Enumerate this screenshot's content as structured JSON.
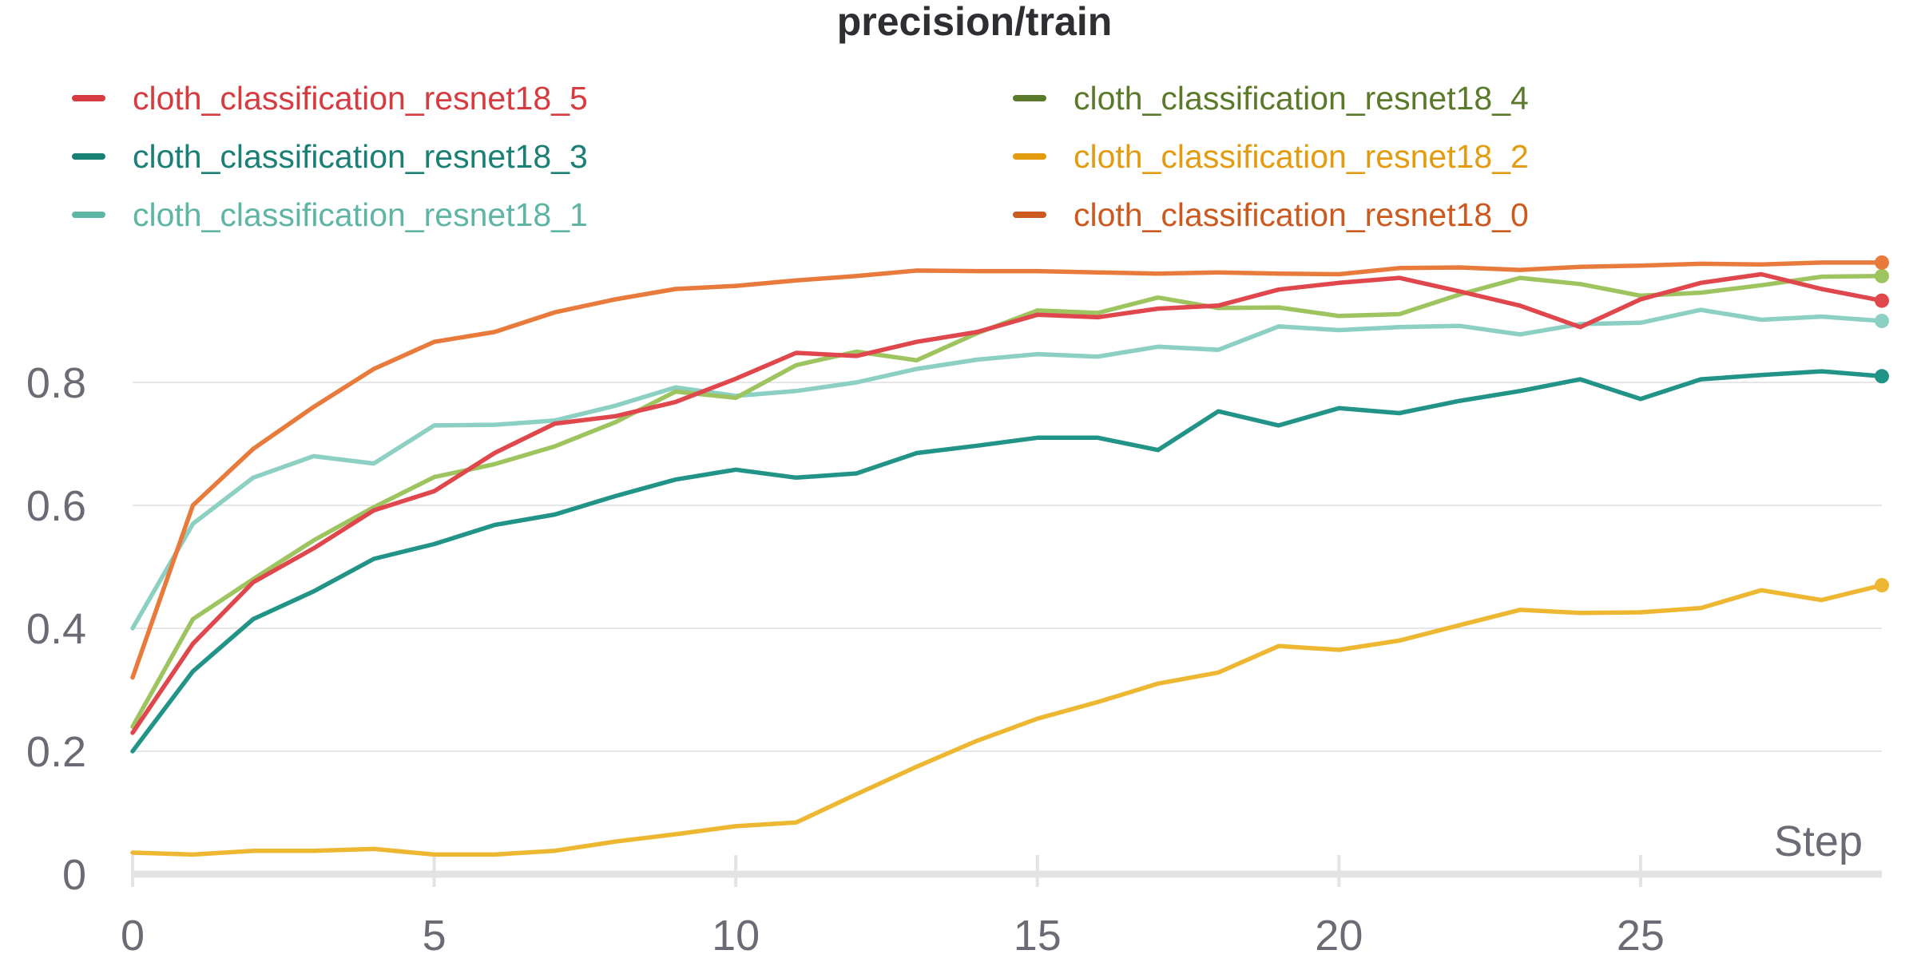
{
  "chart_data": {
    "type": "line",
    "title": "precision/train",
    "xlabel": "Step",
    "ylabel": "",
    "xlim": [
      0,
      29
    ],
    "ylim": [
      0,
      1
    ],
    "x_ticks": [
      "0",
      "5",
      "10",
      "15",
      "20",
      "25"
    ],
    "y_ticks": [
      "0",
      "0.2",
      "0.4",
      "0.6",
      "0.8"
    ],
    "grid": true,
    "legend_position": "top",
    "x": [
      0,
      1,
      2,
      3,
      4,
      5,
      6,
      7,
      8,
      9,
      10,
      11,
      12,
      13,
      14,
      15,
      16,
      17,
      18,
      19,
      20,
      21,
      22,
      23,
      24,
      25,
      26,
      27,
      28,
      29
    ],
    "series": [
      {
        "name": "cloth_classification_resnet18_5",
        "legend_color": "#d63b40",
        "line_color": "#e0474c",
        "values": [
          0.23,
          0.375,
          0.475,
          0.53,
          0.592,
          0.623,
          0.685,
          0.733,
          0.745,
          0.768,
          0.806,
          0.848,
          0.843,
          0.866,
          0.882,
          0.91,
          0.906,
          0.92,
          0.925,
          0.951,
          0.962,
          0.97,
          0.948,
          0.925,
          0.89,
          0.935,
          0.962,
          0.976,
          0.952,
          0.933
        ]
      },
      {
        "name": "cloth_classification_resnet18_4",
        "legend_color": "#5a7a2a",
        "line_color": "#9dc45f",
        "values": [
          0.24,
          0.415,
          0.48,
          0.543,
          0.597,
          0.646,
          0.667,
          0.696,
          0.735,
          0.785,
          0.775,
          0.828,
          0.85,
          0.836,
          0.88,
          0.917,
          0.913,
          0.938,
          0.921,
          0.922,
          0.908,
          0.911,
          0.943,
          0.97,
          0.96,
          0.941,
          0.946,
          0.958,
          0.972,
          0.973
        ]
      },
      {
        "name": "cloth_classification_resnet18_3",
        "legend_color": "#1a7f74",
        "line_color": "#229487",
        "values": [
          0.2,
          0.33,
          0.415,
          0.46,
          0.513,
          0.537,
          0.568,
          0.585,
          0.615,
          0.642,
          0.658,
          0.645,
          0.652,
          0.685,
          0.697,
          0.71,
          0.71,
          0.69,
          0.753,
          0.73,
          0.758,
          0.75,
          0.77,
          0.786,
          0.805,
          0.773,
          0.805,
          0.812,
          0.818,
          0.81
        ]
      },
      {
        "name": "cloth_classification_resnet18_2",
        "legend_color": "#e39c10",
        "line_color": "#edb732",
        "values": [
          0.035,
          0.032,
          0.038,
          0.038,
          0.041,
          0.032,
          0.032,
          0.038,
          0.053,
          0.065,
          0.078,
          0.084,
          0.13,
          0.175,
          0.217,
          0.253,
          0.28,
          0.31,
          0.328,
          0.371,
          0.365,
          0.38,
          0.405,
          0.43,
          0.425,
          0.426,
          0.433,
          0.462,
          0.446,
          0.47
        ]
      },
      {
        "name": "cloth_classification_resnet18_1",
        "legend_color": "#5fb5a4",
        "line_color": "#8ccfc3",
        "values": [
          0.4,
          0.57,
          0.645,
          0.68,
          0.668,
          0.73,
          0.731,
          0.738,
          0.762,
          0.792,
          0.778,
          0.786,
          0.8,
          0.822,
          0.837,
          0.846,
          0.842,
          0.858,
          0.853,
          0.891,
          0.885,
          0.89,
          0.892,
          0.878,
          0.895,
          0.897,
          0.918,
          0.902,
          0.907,
          0.9
        ]
      },
      {
        "name": "cloth_classification_resnet18_0",
        "legend_color": "#cc5a1e",
        "line_color": "#e87a3c",
        "values": [
          0.32,
          0.6,
          0.692,
          0.76,
          0.822,
          0.866,
          0.882,
          0.914,
          0.935,
          0.952,
          0.957,
          0.966,
          0.973,
          0.982,
          0.981,
          0.981,
          0.979,
          0.977,
          0.979,
          0.977,
          0.976,
          0.986,
          0.987,
          0.983,
          0.988,
          0.99,
          0.993,
          0.992,
          0.995,
          0.995
        ]
      }
    ]
  }
}
